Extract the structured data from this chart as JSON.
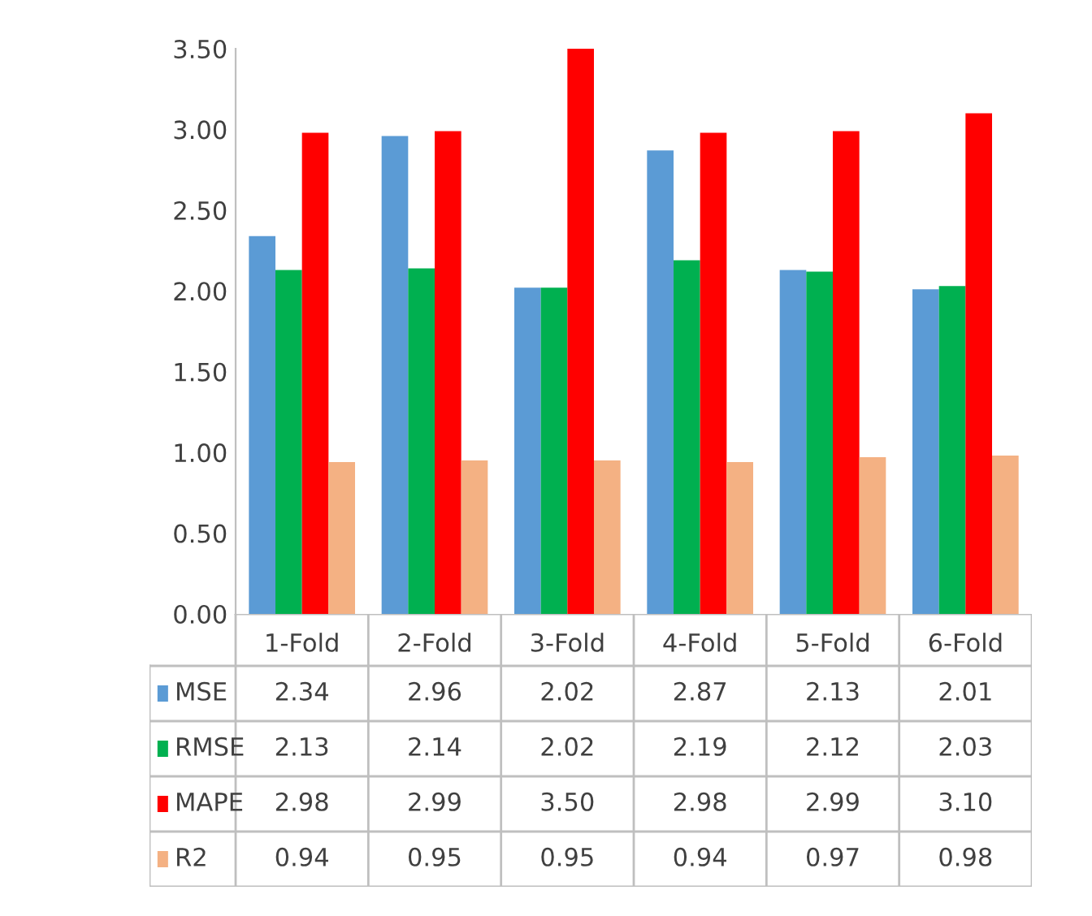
{
  "chart_data": {
    "type": "bar",
    "categories": [
      "1-Fold",
      "2-Fold",
      "3-Fold",
      "4-Fold",
      "5-Fold",
      "6-Fold"
    ],
    "series": [
      {
        "name": "MSE",
        "color": "#5b9bd5",
        "values": [
          2.34,
          2.96,
          2.02,
          2.87,
          2.13,
          2.01
        ],
        "value_labels": [
          "2.34",
          "2.96",
          "2.02",
          "2.87",
          "2.13",
          "2.01"
        ]
      },
      {
        "name": "RMSE",
        "color": "#00b050",
        "values": [
          2.13,
          2.14,
          2.02,
          2.19,
          2.12,
          2.03
        ],
        "value_labels": [
          "2.13",
          "2.14",
          "2.02",
          "2.19",
          "2.12",
          "2.03"
        ]
      },
      {
        "name": "MAPE",
        "color": "#ff0000",
        "values": [
          2.98,
          2.99,
          3.5,
          2.98,
          2.99,
          3.1
        ],
        "value_labels": [
          "2.98",
          "2.99",
          "3.50",
          "2.98",
          "2.99",
          "3.10"
        ]
      },
      {
        "name": "R2",
        "color": "#f4b183",
        "values": [
          0.94,
          0.95,
          0.95,
          0.94,
          0.97,
          0.98
        ],
        "value_labels": [
          "0.94",
          "0.95",
          "0.95",
          "0.94",
          "0.97",
          "0.98"
        ]
      }
    ],
    "ylim": [
      0,
      3.5
    ],
    "yticks": [
      {
        "value": 0,
        "label": "0.00"
      },
      {
        "value": 0.5,
        "label": "0.50"
      },
      {
        "value": 1,
        "label": "1.00"
      },
      {
        "value": 1.5,
        "label": "1.50"
      },
      {
        "value": 2,
        "label": "2.00"
      },
      {
        "value": 2.5,
        "label": "2.50"
      },
      {
        "value": 3,
        "label": "3.00"
      },
      {
        "value": 3.5,
        "label": "3.50"
      }
    ],
    "legend": "bottom left",
    "grid": false
  }
}
